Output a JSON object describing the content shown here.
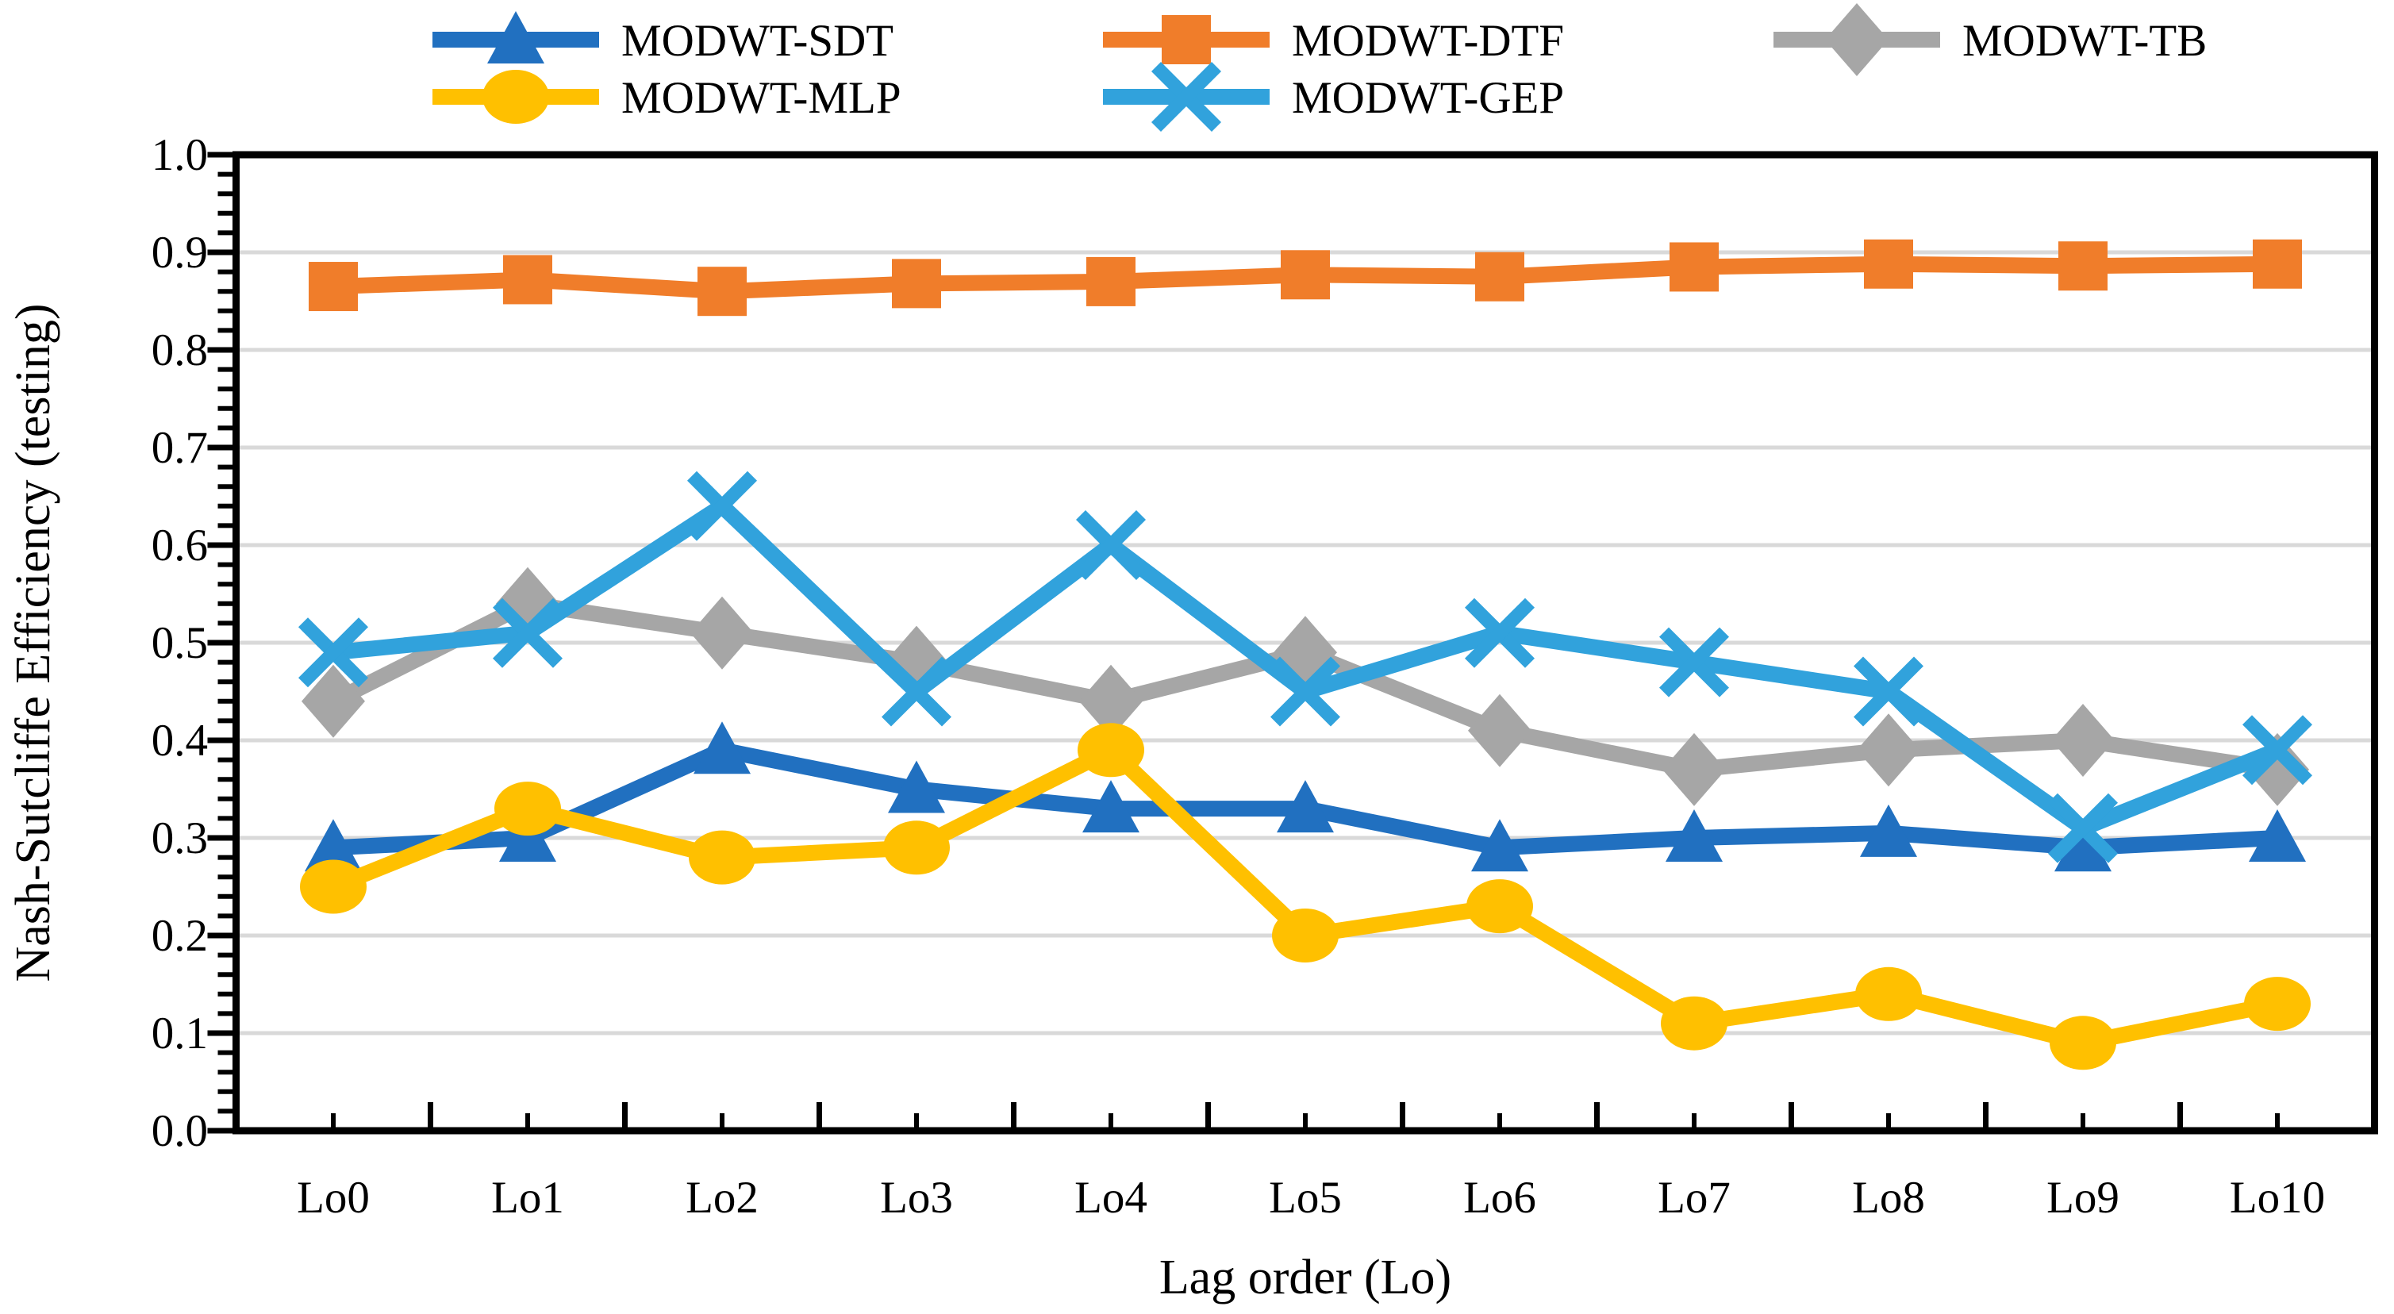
{
  "figure": {
    "background": "#FFFFFF",
    "axis_color": "#000000",
    "gridline_color": "#D9D9D9"
  },
  "chart_data": {
    "type": "line",
    "title": "",
    "xlabel": "Lag order (Lo)",
    "ylabel": "Nash-Sutcliffe Efficiency (testing)",
    "categories": [
      "Lo0",
      "Lo1",
      "Lo2",
      "Lo3",
      "Lo4",
      "Lo5",
      "Lo6",
      "Lo7",
      "Lo8",
      "Lo9",
      "Lo10"
    ],
    "ylim": [
      0.0,
      1.0
    ],
    "y_major_step": 0.1,
    "y_minor_step": 0.02,
    "y_tick_labels": [
      "0.0",
      "0.1",
      "0.2",
      "0.3",
      "0.4",
      "0.5",
      "0.6",
      "0.7",
      "0.8",
      "0.9",
      "1.0"
    ],
    "grid": "horizontal-major-only",
    "legend_position": "top",
    "series": [
      {
        "name": "MODWT-SDT",
        "color": "#2170C0",
        "marker": "triangle",
        "values": [
          0.29,
          0.3,
          0.39,
          0.35,
          0.33,
          0.33,
          0.29,
          0.3,
          0.305,
          0.29,
          0.3
        ]
      },
      {
        "name": "MODWT-DTF",
        "color": "#F07D2A",
        "marker": "square",
        "values": [
          0.865,
          0.872,
          0.86,
          0.868,
          0.87,
          0.877,
          0.875,
          0.885,
          0.888,
          0.886,
          0.888
        ]
      },
      {
        "name": "MODWT-TB",
        "color": "#A6A6A6",
        "marker": "diamond",
        "values": [
          0.44,
          0.54,
          0.51,
          0.48,
          0.44,
          0.49,
          0.41,
          0.37,
          0.39,
          0.4,
          0.37
        ]
      },
      {
        "name": "MODWT-MLP",
        "color": "#FFC000",
        "marker": "circle",
        "values": [
          0.25,
          0.33,
          0.28,
          0.29,
          0.39,
          0.2,
          0.23,
          0.11,
          0.14,
          0.09,
          0.13
        ]
      },
      {
        "name": "MODWT-GEP",
        "color": "#31A2DC",
        "marker": "x",
        "values": [
          0.49,
          0.51,
          0.64,
          0.45,
          0.6,
          0.45,
          0.51,
          0.48,
          0.45,
          0.31,
          0.39
        ]
      }
    ],
    "legend_rows": [
      [
        "MODWT-SDT",
        "MODWT-DTF",
        "MODWT-TB"
      ],
      [
        "MODWT-MLP",
        "MODWT-GEP"
      ]
    ]
  }
}
